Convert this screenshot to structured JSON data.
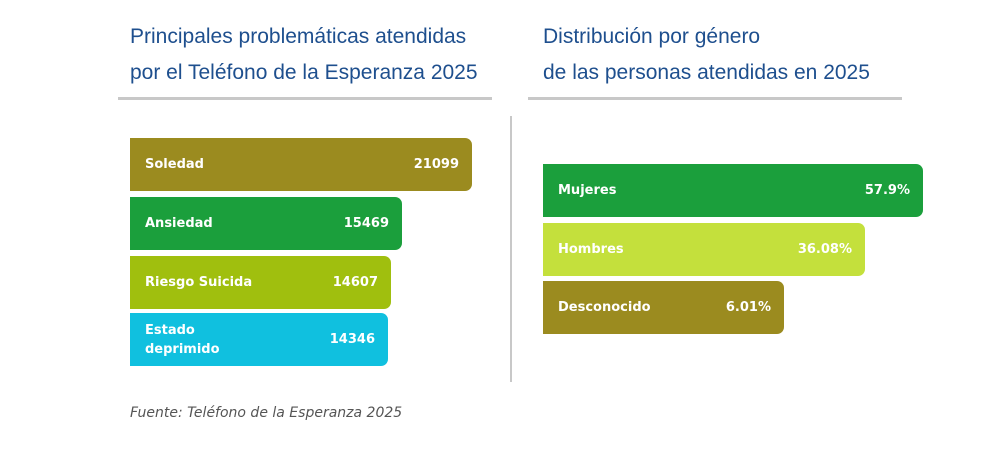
{
  "left": {
    "title_line1": "Principales problemáticas atendidas",
    "title_line2": "por el Teléfono de la Esperanza 2025"
  },
  "right": {
    "title_line1": "Distribución por género",
    "title_line2": "de las personas atendidas en 2025"
  },
  "source": "Fuente: Teléfono de la Esperanza 2025",
  "chart_data": [
    {
      "type": "bar",
      "orientation": "horizontal",
      "title": "Principales problemáticas atendidas por el Teléfono de la Esperanza 2025",
      "categories": [
        "Soledad",
        "Ansiedad",
        "Riesgo Suicida",
        "Estado deprimido"
      ],
      "values": [
        21099,
        15469,
        14607,
        14346
      ],
      "labels": [
        "21099",
        "15469",
        "14607",
        "14346"
      ],
      "colors": [
        "#9b8b1f",
        "#1b9f3c",
        "#a0bf0e",
        "#10c0df"
      ],
      "axis_visible": false
    },
    {
      "type": "bar",
      "orientation": "horizontal",
      "title": "Distribución por género de las personas atendidas en 2025",
      "categories": [
        "Mujeres",
        "Hombres",
        "Desconocido"
      ],
      "values": [
        57.9,
        36.08,
        6.01
      ],
      "labels": [
        "57.9%",
        "36.08%",
        "6.01%"
      ],
      "colors": [
        "#1b9f3c",
        "#c4e03c",
        "#9b8b1f"
      ],
      "axis_visible": false
    }
  ]
}
